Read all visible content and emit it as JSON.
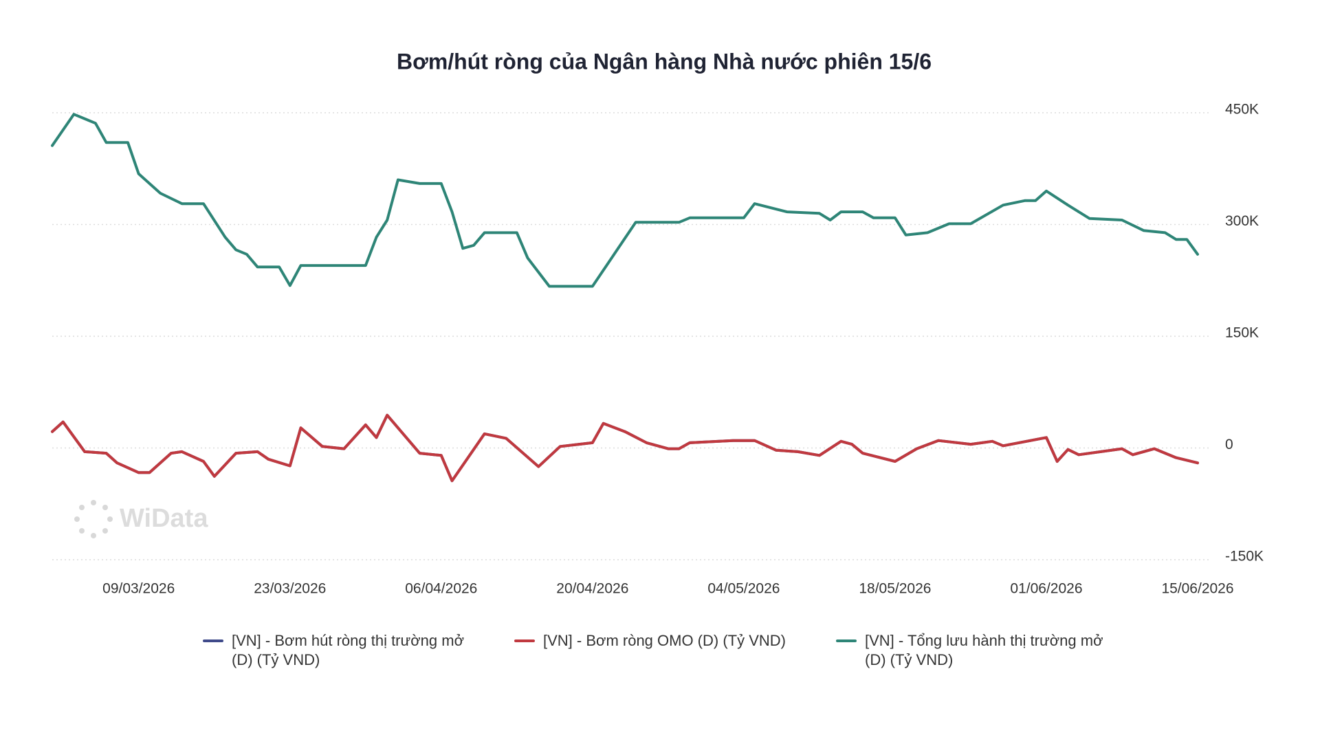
{
  "chart_data": {
    "type": "line",
    "title": "Bơm/hút ròng của Ngân hàng Nhà nước phiên 15/6",
    "watermark": "WiData",
    "xlim": [
      "2026-03-01",
      "2026-06-15"
    ],
    "xticks": [
      {
        "value": "2026-03-09",
        "label": "09/03/2026"
      },
      {
        "value": "2026-03-23",
        "label": "23/03/2026"
      },
      {
        "value": "2026-04-06",
        "label": "06/04/2026"
      },
      {
        "value": "2026-04-20",
        "label": "20/04/2026"
      },
      {
        "value": "2026-05-04",
        "label": "04/05/2026"
      },
      {
        "value": "2026-05-18",
        "label": "18/05/2026"
      },
      {
        "value": "2026-06-01",
        "label": "01/06/2026"
      },
      {
        "value": "2026-06-15",
        "label": "15/06/2026"
      }
    ],
    "ylim": [
      -150000,
      450000
    ],
    "yticks": [
      {
        "value": -150000,
        "label": "-150K"
      },
      0,
      {
        "value": 150000,
        "label": "150K"
      },
      {
        "value": 300000,
        "label": "300K"
      },
      {
        "value": 450000,
        "label": "450K"
      }
    ],
    "grid": true,
    "legend": "bottom",
    "series": [
      {
        "name": "[VN] - Bơm hút ròng thị trường mở (D) (Tỷ VND)",
        "color": "#3f4a8a",
        "x": [
          "2026-03-01",
          "2026-03-02",
          "2026-03-04",
          "2026-03-06",
          "2026-03-07",
          "2026-03-09",
          "2026-03-10",
          "2026-03-12",
          "2026-03-13",
          "2026-03-15",
          "2026-03-16",
          "2026-03-18",
          "2026-03-20",
          "2026-03-21",
          "2026-03-23",
          "2026-03-24",
          "2026-03-26",
          "2026-03-28",
          "2026-03-30",
          "2026-03-31",
          "2026-04-01",
          "2026-04-04",
          "2026-04-06",
          "2026-04-07",
          "2026-04-10",
          "2026-04-12",
          "2026-04-15",
          "2026-04-17",
          "2026-04-20",
          "2026-04-21",
          "2026-04-23",
          "2026-04-25",
          "2026-04-27",
          "2026-04-28",
          "2026-04-29",
          "2026-05-03",
          "2026-05-05",
          "2026-05-07",
          "2026-05-09",
          "2026-05-11",
          "2026-05-13",
          "2026-05-14",
          "2026-05-15",
          "2026-05-18",
          "2026-05-20",
          "2026-05-22",
          "2026-05-25",
          "2026-05-27",
          "2026-05-28",
          "2026-06-01",
          "2026-06-02",
          "2026-06-03",
          "2026-06-04",
          "2026-06-08",
          "2026-06-09",
          "2026-06-11",
          "2026-06-13",
          "2026-06-15"
        ],
        "values": [
          22000,
          35000,
          -5000,
          -7000,
          -20000,
          -33000,
          -33000,
          -7000,
          -5000,
          -18000,
          -38000,
          -7000,
          -5000,
          -15000,
          -24000,
          27000,
          2000,
          -1000,
          31000,
          14000,
          44000,
          -7000,
          -10000,
          -44000,
          19000,
          13000,
          -25000,
          2000,
          7000,
          33000,
          22000,
          7000,
          -1000,
          -1000,
          7000,
          10000,
          10000,
          -3000,
          -5000,
          -10000,
          9000,
          5000,
          -7000,
          -18000,
          -1000,
          10000,
          5000,
          9000,
          3000,
          14000,
          -18000,
          -2000,
          -9000,
          -1000,
          -9000,
          -1000,
          -13000,
          -20000
        ]
      },
      {
        "name": "[VN] - Bơm ròng OMO (D) (Tỷ VND)",
        "color": "#c0393f",
        "x": [
          "2026-03-01",
          "2026-03-02",
          "2026-03-04",
          "2026-03-06",
          "2026-03-07",
          "2026-03-09",
          "2026-03-10",
          "2026-03-12",
          "2026-03-13",
          "2026-03-15",
          "2026-03-16",
          "2026-03-18",
          "2026-03-20",
          "2026-03-21",
          "2026-03-23",
          "2026-03-24",
          "2026-03-26",
          "2026-03-28",
          "2026-03-30",
          "2026-03-31",
          "2026-04-01",
          "2026-04-04",
          "2026-04-06",
          "2026-04-07",
          "2026-04-10",
          "2026-04-12",
          "2026-04-15",
          "2026-04-17",
          "2026-04-20",
          "2026-04-21",
          "2026-04-23",
          "2026-04-25",
          "2026-04-27",
          "2026-04-28",
          "2026-04-29",
          "2026-05-03",
          "2026-05-05",
          "2026-05-07",
          "2026-05-09",
          "2026-05-11",
          "2026-05-13",
          "2026-05-14",
          "2026-05-15",
          "2026-05-18",
          "2026-05-20",
          "2026-05-22",
          "2026-05-25",
          "2026-05-27",
          "2026-05-28",
          "2026-06-01",
          "2026-06-02",
          "2026-06-03",
          "2026-06-04",
          "2026-06-08",
          "2026-06-09",
          "2026-06-11",
          "2026-06-13",
          "2026-06-15"
        ],
        "values": [
          22000,
          35000,
          -5000,
          -7000,
          -20000,
          -33000,
          -33000,
          -7000,
          -5000,
          -18000,
          -38000,
          -7000,
          -5000,
          -15000,
          -24000,
          27000,
          2000,
          -1000,
          31000,
          14000,
          44000,
          -7000,
          -10000,
          -44000,
          19000,
          13000,
          -25000,
          2000,
          7000,
          33000,
          22000,
          7000,
          -1000,
          -1000,
          7000,
          10000,
          10000,
          -3000,
          -5000,
          -10000,
          9000,
          5000,
          -7000,
          -18000,
          -1000,
          10000,
          5000,
          9000,
          3000,
          14000,
          -18000,
          -2000,
          -9000,
          -1000,
          -9000,
          -1000,
          -13000,
          -20000
        ]
      },
      {
        "name": "[VN] - Tổng lưu hành thị trường mở (D) (Tỷ VND)",
        "color": "#2e8577",
        "x": [
          "2026-03-01",
          "2026-03-03",
          "2026-03-05",
          "2026-03-06",
          "2026-03-08",
          "2026-03-09",
          "2026-03-11",
          "2026-03-13",
          "2026-03-15",
          "2026-03-17",
          "2026-03-18",
          "2026-03-19",
          "2026-03-20",
          "2026-03-22",
          "2026-03-23",
          "2026-03-24",
          "2026-03-30",
          "2026-03-31",
          "2026-04-01",
          "2026-04-02",
          "2026-04-04",
          "2026-04-06",
          "2026-04-07",
          "2026-04-08",
          "2026-04-09",
          "2026-04-10",
          "2026-04-13",
          "2026-04-14",
          "2026-04-16",
          "2026-04-20",
          "2026-04-22",
          "2026-04-24",
          "2026-04-28",
          "2026-04-29",
          "2026-05-04",
          "2026-05-05",
          "2026-05-08",
          "2026-05-11",
          "2026-05-12",
          "2026-05-13",
          "2026-05-15",
          "2026-05-16",
          "2026-05-18",
          "2026-05-19",
          "2026-05-21",
          "2026-05-23",
          "2026-05-25",
          "2026-05-28",
          "2026-05-30",
          "2026-05-31",
          "2026-06-01",
          "2026-06-03",
          "2026-06-05",
          "2026-06-08",
          "2026-06-10",
          "2026-06-12",
          "2026-06-13",
          "2026-06-14",
          "2026-06-15"
        ],
        "values": [
          406000,
          448000,
          436000,
          410000,
          410000,
          368000,
          342000,
          328000,
          328000,
          283000,
          266000,
          260000,
          243000,
          243000,
          218000,
          245000,
          245000,
          283000,
          306000,
          360000,
          355000,
          355000,
          317000,
          268000,
          272000,
          289000,
          289000,
          255000,
          217000,
          217000,
          260000,
          303000,
          303000,
          309000,
          309000,
          328000,
          317000,
          315000,
          306000,
          317000,
          317000,
          309000,
          309000,
          286000,
          289000,
          301000,
          301000,
          326000,
          332000,
          332000,
          345000,
          326000,
          308000,
          306000,
          292000,
          289000,
          280000,
          280000,
          260000
        ]
      }
    ]
  }
}
